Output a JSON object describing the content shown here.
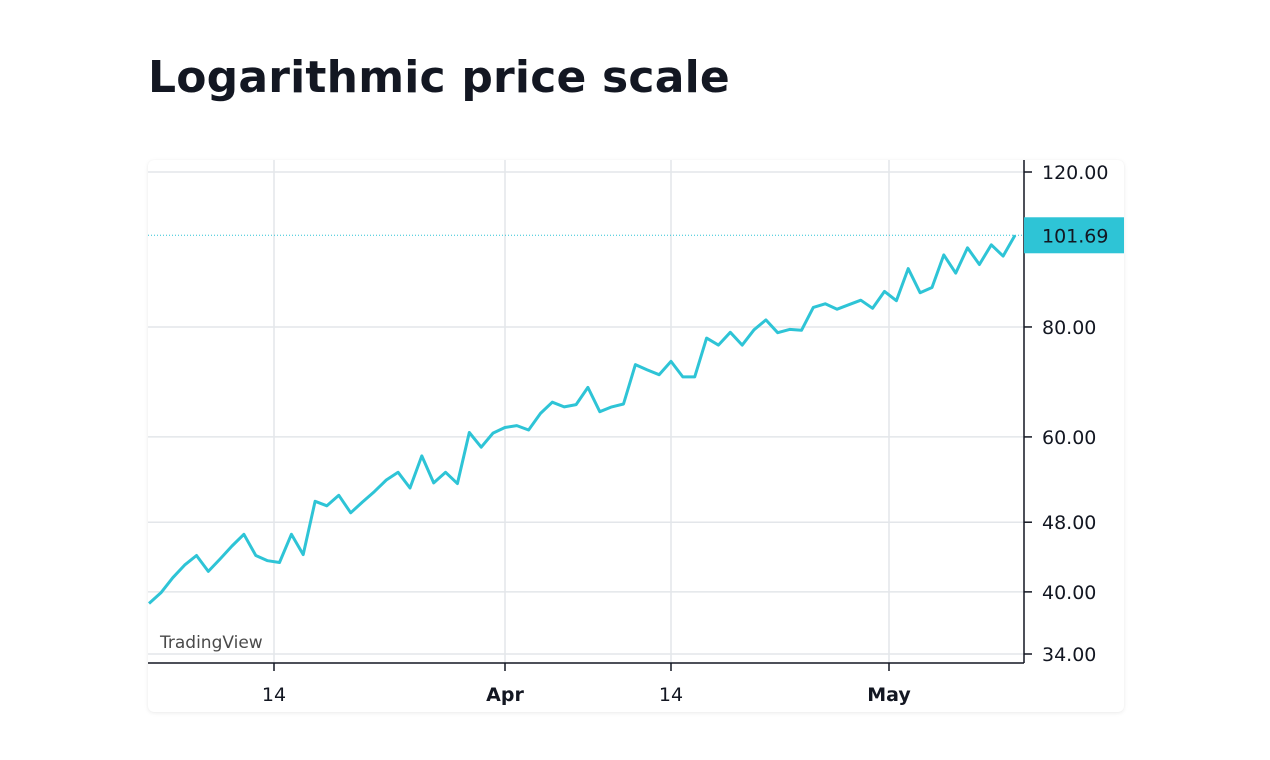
{
  "page": {
    "title": "Logarithmic price scale"
  },
  "watermark": "TradingView",
  "colors": {
    "series": "#2ec4d6",
    "grid": "#e3e6ea",
    "axis": "#131722",
    "last_price_bg": "#2ec4d6"
  },
  "chart_data": {
    "type": "line",
    "title": "",
    "xlabel": "",
    "ylabel": "",
    "y_scale": "log",
    "ylim": [
      34,
      120
    ],
    "y_ticks": [
      "120.00",
      "80.00",
      "60.00",
      "48.00",
      "40.00",
      "34.00"
    ],
    "x_ticks": [
      {
        "label": "14",
        "bold": false
      },
      {
        "label": "Apr",
        "bold": true
      },
      {
        "label": "14",
        "bold": false
      },
      {
        "label": "May",
        "bold": true
      }
    ],
    "last_value": "101.69",
    "grid": true,
    "series": [
      {
        "values": [
          38.8,
          39.9,
          41.5,
          42.9,
          44.0,
          42.2,
          43.6,
          45.1,
          46.5,
          44.0,
          43.4,
          43.2,
          46.5,
          44.1,
          50.7,
          50.1,
          51.5,
          49.2,
          50.6,
          52.0,
          53.6,
          54.7,
          52.5,
          57.1,
          53.2,
          54.7,
          53.1,
          60.7,
          58.4,
          60.6,
          61.5,
          61.8,
          61.1,
          63.8,
          65.7,
          64.9,
          65.3,
          68.3,
          64.1,
          64.9,
          65.4,
          72.5,
          71.5,
          70.6,
          73.1,
          70.2,
          70.2,
          77.7,
          76.3,
          78.9,
          76.3,
          79.4,
          81.5,
          78.8,
          79.5,
          79.3,
          84.2,
          85.0,
          83.8,
          84.8,
          85.8,
          84.0,
          87.8,
          85.7,
          93.2,
          87.5,
          88.7,
          96.6,
          92.1,
          98.4,
          94.2,
          99.2,
          96.3,
          101.69
        ]
      }
    ]
  }
}
